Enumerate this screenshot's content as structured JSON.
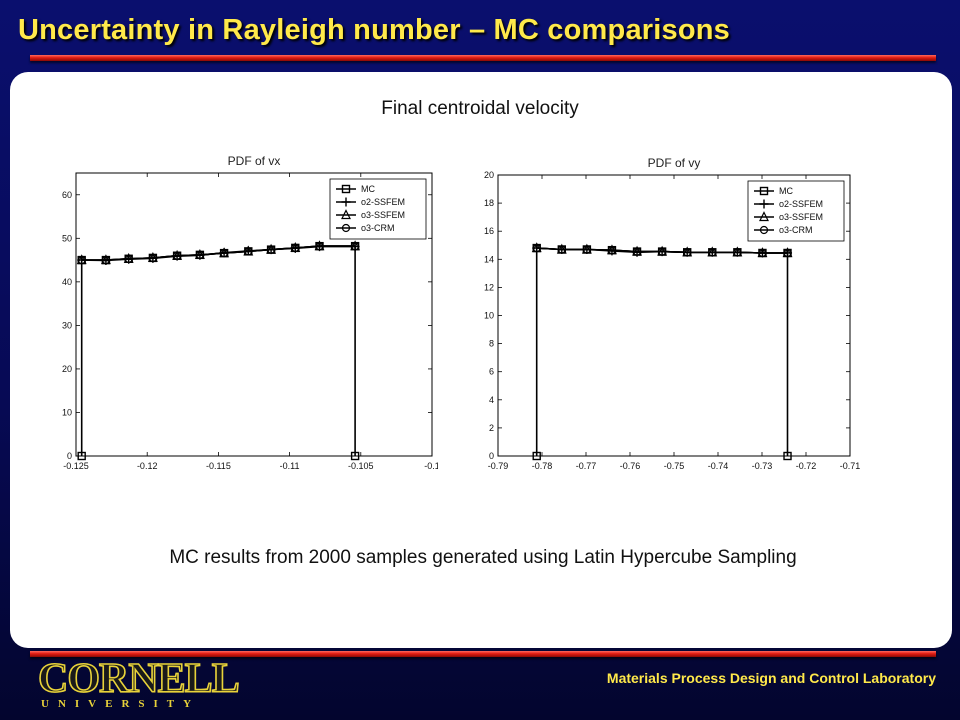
{
  "slide": {
    "title": "Uncertainty in Rayleigh number – MC comparisons",
    "subtitle": "Final centroidal velocity",
    "caption": "MC results from 2000 samples generated using Latin Hypercube Sampling",
    "footer_lab": "Materials Process Design and Control Laboratory",
    "logo_word": "CORNELL",
    "logo_sub": "UNIVERSITY",
    "colors": {
      "title": "#ffe94a",
      "accent_line": "#e01b12",
      "background": "#070a55"
    }
  },
  "chart_data": [
    {
      "type": "line",
      "title": "PDF of vx",
      "xlabel": "",
      "ylabel": "",
      "xlim": [
        -0.125,
        -0.1
      ],
      "ylim": [
        0,
        65
      ],
      "xticks": [
        -0.125,
        -0.12,
        -0.115,
        -0.11,
        -0.105,
        -0.1
      ],
      "xtick_labels": [
        "-0.125",
        "-0.12",
        "-0.115",
        "-0.11",
        "-0.105",
        "-0.1"
      ],
      "yticks": [
        0,
        10,
        20,
        30,
        40,
        50,
        60
      ],
      "legend_position": "top-right",
      "series": [
        {
          "name": "MC",
          "marker": "square",
          "x": [
            -0.1246,
            -0.1246,
            -0.1229,
            -0.1213,
            -0.1196,
            -0.1179,
            -0.1163,
            -0.1146,
            -0.1129,
            -0.1113,
            -0.1096,
            -0.1079,
            -0.1054,
            -0.1054
          ],
          "y": [
            0,
            45,
            45,
            45.3,
            45.5,
            46,
            46.2,
            46.6,
            47,
            47.4,
            47.8,
            48.2,
            48.2,
            0
          ]
        },
        {
          "name": "o2-SSFEM",
          "marker": "plus",
          "x": [
            -0.1246,
            -0.1229,
            -0.1213,
            -0.1196,
            -0.1179,
            -0.1163,
            -0.1146,
            -0.1129,
            -0.1113,
            -0.1096,
            -0.1079,
            -0.1054
          ],
          "y": [
            45,
            44.9,
            45.2,
            45.4,
            45.9,
            46.1,
            46.7,
            47.1,
            47.4,
            47.7,
            48.1,
            48.1
          ]
        },
        {
          "name": "o3-SSFEM",
          "marker": "triangle",
          "x": [
            -0.1246,
            -0.1229,
            -0.1213,
            -0.1196,
            -0.1179,
            -0.1163,
            -0.1146,
            -0.1129,
            -0.1113,
            -0.1096,
            -0.1079,
            -0.1054
          ],
          "y": [
            45,
            45,
            45.3,
            45.5,
            46,
            46.2,
            46.6,
            47,
            47.4,
            47.8,
            48.2,
            48.2
          ]
        },
        {
          "name": "o3-CRM",
          "marker": "circle",
          "x": [
            -0.1246,
            -0.1229,
            -0.1213,
            -0.1196,
            -0.1179,
            -0.1163,
            -0.1146,
            -0.1129,
            -0.1113,
            -0.1096,
            -0.1079,
            -0.1054
          ],
          "y": [
            45,
            45,
            45.3,
            45.5,
            46,
            46.2,
            46.6,
            47,
            47.4,
            47.8,
            48.2,
            48.2
          ]
        }
      ]
    },
    {
      "type": "line",
      "title": "PDF of vy",
      "xlabel": "",
      "ylabel": "",
      "xlim": [
        -0.79,
        -0.71
      ],
      "ylim": [
        0,
        20
      ],
      "xticks": [
        -0.79,
        -0.78,
        -0.77,
        -0.76,
        -0.75,
        -0.74,
        -0.73,
        -0.72,
        -0.71
      ],
      "xtick_labels": [
        "-0.79",
        "-0.78",
        "-0.77",
        "-0.76",
        "-0.75",
        "-0.74",
        "-0.73",
        "-0.72",
        "-0.71"
      ],
      "yticks": [
        0,
        2,
        4,
        6,
        8,
        10,
        12,
        14,
        16,
        18,
        20
      ],
      "legend_position": "top-right",
      "series": [
        {
          "name": "MC",
          "marker": "square",
          "x": [
            -0.7812,
            -0.7812,
            -0.7755,
            -0.7698,
            -0.7641,
            -0.7584,
            -0.7527,
            -0.747,
            -0.7413,
            -0.7356,
            -0.7299,
            -0.7242,
            -0.7242
          ],
          "y": [
            0,
            14.8,
            14.7,
            14.7,
            14.65,
            14.55,
            14.55,
            14.5,
            14.5,
            14.5,
            14.45,
            14.45,
            0
          ]
        },
        {
          "name": "o2-SSFEM",
          "marker": "plus",
          "x": [
            -0.7812,
            -0.7755,
            -0.7698,
            -0.7641,
            -0.7584,
            -0.7527,
            -0.747,
            -0.7413,
            -0.7356,
            -0.7299,
            -0.7242
          ],
          "y": [
            14.8,
            14.7,
            14.7,
            14.6,
            14.5,
            14.55,
            14.5,
            14.5,
            14.5,
            14.45,
            14.45
          ]
        },
        {
          "name": "o3-SSFEM",
          "marker": "triangle",
          "x": [
            -0.7812,
            -0.7755,
            -0.7698,
            -0.7641,
            -0.7584,
            -0.7527,
            -0.747,
            -0.7413,
            -0.7356,
            -0.7299,
            -0.7242
          ],
          "y": [
            14.8,
            14.7,
            14.7,
            14.65,
            14.55,
            14.55,
            14.5,
            14.5,
            14.5,
            14.45,
            14.45
          ]
        },
        {
          "name": "o3-CRM",
          "marker": "circle",
          "x": [
            -0.7812,
            -0.7755,
            -0.7698,
            -0.7641,
            -0.7584,
            -0.7527,
            -0.747,
            -0.7413,
            -0.7356,
            -0.7299,
            -0.7242
          ],
          "y": [
            14.8,
            14.7,
            14.7,
            14.65,
            14.55,
            14.55,
            14.5,
            14.5,
            14.5,
            14.45,
            14.45
          ]
        }
      ]
    }
  ]
}
